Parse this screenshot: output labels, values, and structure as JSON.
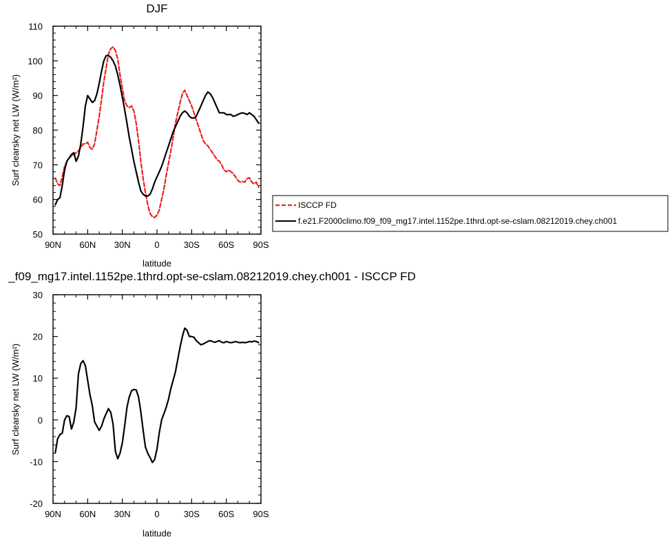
{
  "colors": {
    "isccp": "#e8231f",
    "model": "#000000",
    "axis": "#000000"
  },
  "top": {
    "title": "DJF",
    "ylabel": "Surf clearsky net LW (W/m²)",
    "xlabel": "latitude",
    "xticks": [
      "90N",
      "60N",
      "30N",
      "0",
      "30S",
      "60S",
      "90S"
    ],
    "yticks": [
      "50",
      "60",
      "70",
      "80",
      "90",
      "100",
      "110"
    ]
  },
  "bottom": {
    "title": "_f09_mg17.intel.1152pe.1thrd.opt-se-cslam.08212019.chey.ch001 - ISCCP FD",
    "ylabel": "Surf clearsky net LW (W/m²)",
    "xlabel": "latitude",
    "xticks": [
      "90N",
      "60N",
      "30N",
      "0",
      "30S",
      "60S",
      "90S"
    ],
    "yticks": [
      "-20",
      "-10",
      "0",
      "10",
      "20",
      "30"
    ]
  },
  "legend": [
    {
      "label": "ISCCP FD",
      "style": "dashed",
      "color": "#e8231f"
    },
    {
      "label": "f.e21.F2000climo.f09_f09_mg17.intel.1152pe.1thrd.opt-se-cslam.08212019.chey.ch001",
      "style": "solid",
      "color": "#000000"
    }
  ],
  "chart_data": [
    {
      "type": "line",
      "title": "DJF",
      "xlabel": "latitude",
      "ylabel": "Surf clearsky net LW (W/m²)",
      "xlim": [
        -90,
        90
      ],
      "ylim": [
        50,
        110
      ],
      "x_direction": "90N on left (+90) to 90S on right (-90)",
      "grid": false,
      "legend_position": "right",
      "series": [
        {
          "name": "ISCCP FD",
          "style": "dashed",
          "color": "#e8231f",
          "x": [
            88,
            86,
            84,
            82,
            80,
            78,
            76,
            74,
            72,
            70,
            68,
            66,
            64,
            62,
            60,
            58,
            56,
            54,
            52,
            50,
            48,
            46,
            44,
            42,
            40,
            38,
            36,
            34,
            32,
            30,
            28,
            26,
            24,
            22,
            20,
            18,
            16,
            14,
            12,
            10,
            8,
            6,
            4,
            2,
            0,
            -2,
            -4,
            -6,
            -8,
            -10,
            -12,
            -14,
            -16,
            -18,
            -20,
            -22,
            -24,
            -26,
            -28,
            -30,
            -32,
            -34,
            -36,
            -38,
            -40,
            -42,
            -44,
            -46,
            -48,
            -50,
            -52,
            -54,
            -56,
            -58,
            -60,
            -62,
            -64,
            -66,
            -68,
            -70,
            -72,
            -74,
            -76,
            -78,
            -80,
            -82,
            -84,
            -86,
            -88
          ],
          "y": [
            66.2,
            64.5,
            64.0,
            66.5,
            69.5,
            71.0,
            72.0,
            72.5,
            73.0,
            73.5,
            74.0,
            75.0,
            76.0,
            76.0,
            76.5,
            75.0,
            74.5,
            76.0,
            80.0,
            84.0,
            89.0,
            94.0,
            98.0,
            102.0,
            103.5,
            104.0,
            103.0,
            100.5,
            96.0,
            92.0,
            88.5,
            87.0,
            86.5,
            87.0,
            85.5,
            82.0,
            77.0,
            71.0,
            66.0,
            62.0,
            58.5,
            56.0,
            55.0,
            54.8,
            55.5,
            57.0,
            60.0,
            63.0,
            67.0,
            70.5,
            74.0,
            78.0,
            82.0,
            85.0,
            88.0,
            90.5,
            91.5,
            90.0,
            88.5,
            87.0,
            85.0,
            83.0,
            81.0,
            79.0,
            77.0,
            76.0,
            75.5,
            74.5,
            73.5,
            72.5,
            71.5,
            71.0,
            70.0,
            68.5,
            68.0,
            68.5,
            68.0,
            67.5,
            66.5,
            65.5,
            65.0,
            65.2,
            65.0,
            66.0,
            66.3,
            65.0,
            64.5,
            65.0,
            63.5
          ]
        },
        {
          "name": "f.e21.F2000climo.f09_f09_mg17.intel.1152pe.1thrd.opt-se-cslam.08212019.chey.ch001",
          "style": "solid",
          "color": "#000000",
          "x": [
            88,
            86,
            84,
            82,
            80,
            78,
            76,
            74,
            72,
            70,
            68,
            66,
            64,
            62,
            60,
            58,
            56,
            54,
            52,
            50,
            48,
            46,
            44,
            42,
            40,
            38,
            36,
            34,
            32,
            30,
            28,
            26,
            24,
            22,
            20,
            18,
            16,
            14,
            12,
            10,
            8,
            6,
            4,
            2,
            0,
            -2,
            -4,
            -6,
            -8,
            -10,
            -12,
            -14,
            -16,
            -18,
            -20,
            -22,
            -24,
            -26,
            -28,
            -30,
            -32,
            -34,
            -36,
            -38,
            -40,
            -42,
            -44,
            -46,
            -48,
            -50,
            -52,
            -54,
            -56,
            -58,
            -60,
            -62,
            -64,
            -66,
            -68,
            -70,
            -72,
            -74,
            -76,
            -78,
            -80,
            -82,
            -84,
            -86,
            -88
          ],
          "y": [
            58.5,
            60.0,
            60.5,
            64.0,
            68.5,
            71.0,
            72.0,
            73.0,
            73.5,
            71.0,
            72.5,
            76.0,
            81.0,
            87.0,
            90.0,
            89.0,
            88.0,
            88.5,
            90.5,
            93.5,
            97.0,
            100.0,
            101.5,
            101.5,
            101.0,
            100.0,
            98.5,
            96.0,
            93.0,
            89.5,
            86.0,
            82.0,
            78.0,
            74.5,
            71.0,
            68.0,
            65.0,
            62.5,
            61.5,
            61.0,
            61.0,
            61.5,
            63.0,
            65.0,
            66.5,
            68.0,
            69.5,
            71.5,
            73.5,
            75.5,
            77.5,
            79.5,
            81.0,
            82.5,
            84.0,
            85.0,
            85.5,
            85.0,
            84.0,
            83.5,
            83.5,
            84.0,
            85.5,
            87.0,
            88.5,
            90.0,
            91.0,
            90.5,
            89.5,
            88.0,
            86.5,
            85.0,
            85.0,
            85.0,
            84.5,
            84.5,
            84.5,
            84.0,
            84.2,
            84.5,
            84.8,
            85.0,
            84.8,
            84.5,
            85.0,
            84.5,
            84.0,
            83.0,
            82.0
          ]
        }
      ]
    },
    {
      "type": "line",
      "title": "_f09_mg17.intel.1152pe.1thrd.opt-se-cslam.08212019.chey.ch001 - ISCCP FD",
      "xlabel": "latitude",
      "ylabel": "Surf clearsky net LW (W/m²)",
      "xlim": [
        -90,
        90
      ],
      "ylim": [
        -20,
        30
      ],
      "grid": false,
      "series": [
        {
          "color": "#000000",
          "style": "solid",
          "x": [
            88,
            86,
            84,
            82,
            80,
            78,
            76,
            74,
            72,
            70,
            68,
            66,
            64,
            62,
            60,
            58,
            56,
            54,
            52,
            50,
            48,
            46,
            44,
            42,
            40,
            38,
            36,
            34,
            32,
            30,
            28,
            26,
            24,
            22,
            20,
            18,
            16,
            14,
            12,
            10,
            8,
            6,
            4,
            2,
            0,
            -2,
            -4,
            -6,
            -8,
            -10,
            -12,
            -14,
            -16,
            -18,
            -20,
            -22,
            -24,
            -26,
            -28,
            -30,
            -32,
            -34,
            -36,
            -38,
            -40,
            -42,
            -44,
            -46,
            -48,
            -50,
            -52,
            -54,
            -56,
            -58,
            -60,
            -62,
            -64,
            -66,
            -68,
            -70,
            -72,
            -74,
            -76,
            -78,
            -80,
            -82,
            -84,
            -86,
            -88
          ],
          "y": [
            -7.8,
            -4.5,
            -3.5,
            -3.2,
            0.0,
            1.0,
            0.8,
            -2.2,
            -0.5,
            3.0,
            11.0,
            13.5,
            14.2,
            13.0,
            9.5,
            6.0,
            3.5,
            -0.5,
            -1.5,
            -2.5,
            -1.5,
            0.2,
            1.5,
            2.7,
            1.8,
            -1.0,
            -7.5,
            -9.3,
            -8.0,
            -5.5,
            -1.5,
            3.0,
            5.5,
            7.0,
            7.3,
            7.2,
            5.5,
            2.0,
            -2.5,
            -6.5,
            -8.0,
            -9.0,
            -10.2,
            -9.5,
            -7.0,
            -3.0,
            0.0,
            1.5,
            3.0,
            5.0,
            7.5,
            9.5,
            11.5,
            14.5,
            17.5,
            20.0,
            22.0,
            21.5,
            20.0,
            20.0,
            19.8,
            19.0,
            18.5,
            18.0,
            18.2,
            18.5,
            18.8,
            19.0,
            18.8,
            18.6,
            18.8,
            19.0,
            18.6,
            18.5,
            18.8,
            18.6,
            18.5,
            18.6,
            18.8,
            18.6,
            18.5,
            18.6,
            18.5,
            18.6,
            18.8,
            18.7,
            18.9,
            18.8,
            18.5
          ]
        }
      ]
    }
  ]
}
